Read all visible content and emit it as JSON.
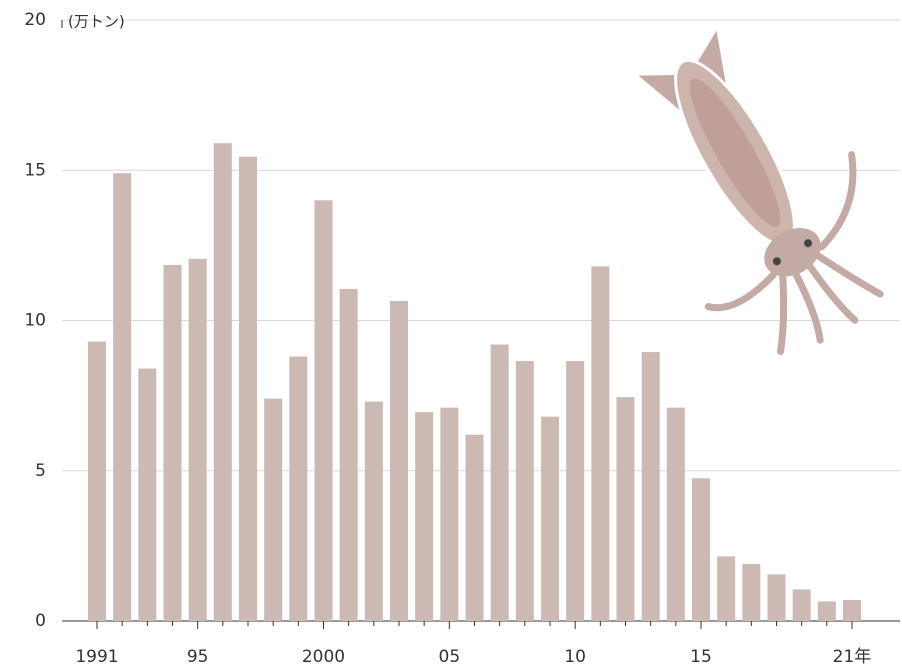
{
  "chart_data": {
    "type": "bar",
    "unit": "(万トン)",
    "categories": [
      "1991",
      null,
      null,
      null,
      "95",
      null,
      null,
      null,
      null,
      "2000",
      null,
      null,
      null,
      null,
      "05",
      null,
      null,
      null,
      null,
      "10",
      null,
      null,
      null,
      null,
      "15",
      null,
      null,
      null,
      null,
      null,
      "21年"
    ],
    "values": [
      9.3,
      14.9,
      8.4,
      11.85,
      12.05,
      15.9,
      15.45,
      7.4,
      8.8,
      14.0,
      11.05,
      7.3,
      10.65,
      6.95,
      7.1,
      6.2,
      9.2,
      8.65,
      6.8,
      8.65,
      11.8,
      7.45,
      8.95,
      7.1,
      4.75,
      2.15,
      1.9,
      1.55,
      1.05,
      0.65,
      0.7
    ],
    "color": "#cdb9b4",
    "ylim": [
      0,
      20
    ],
    "yticks": [
      0,
      5,
      10,
      15,
      20
    ],
    "grid": true
  }
}
